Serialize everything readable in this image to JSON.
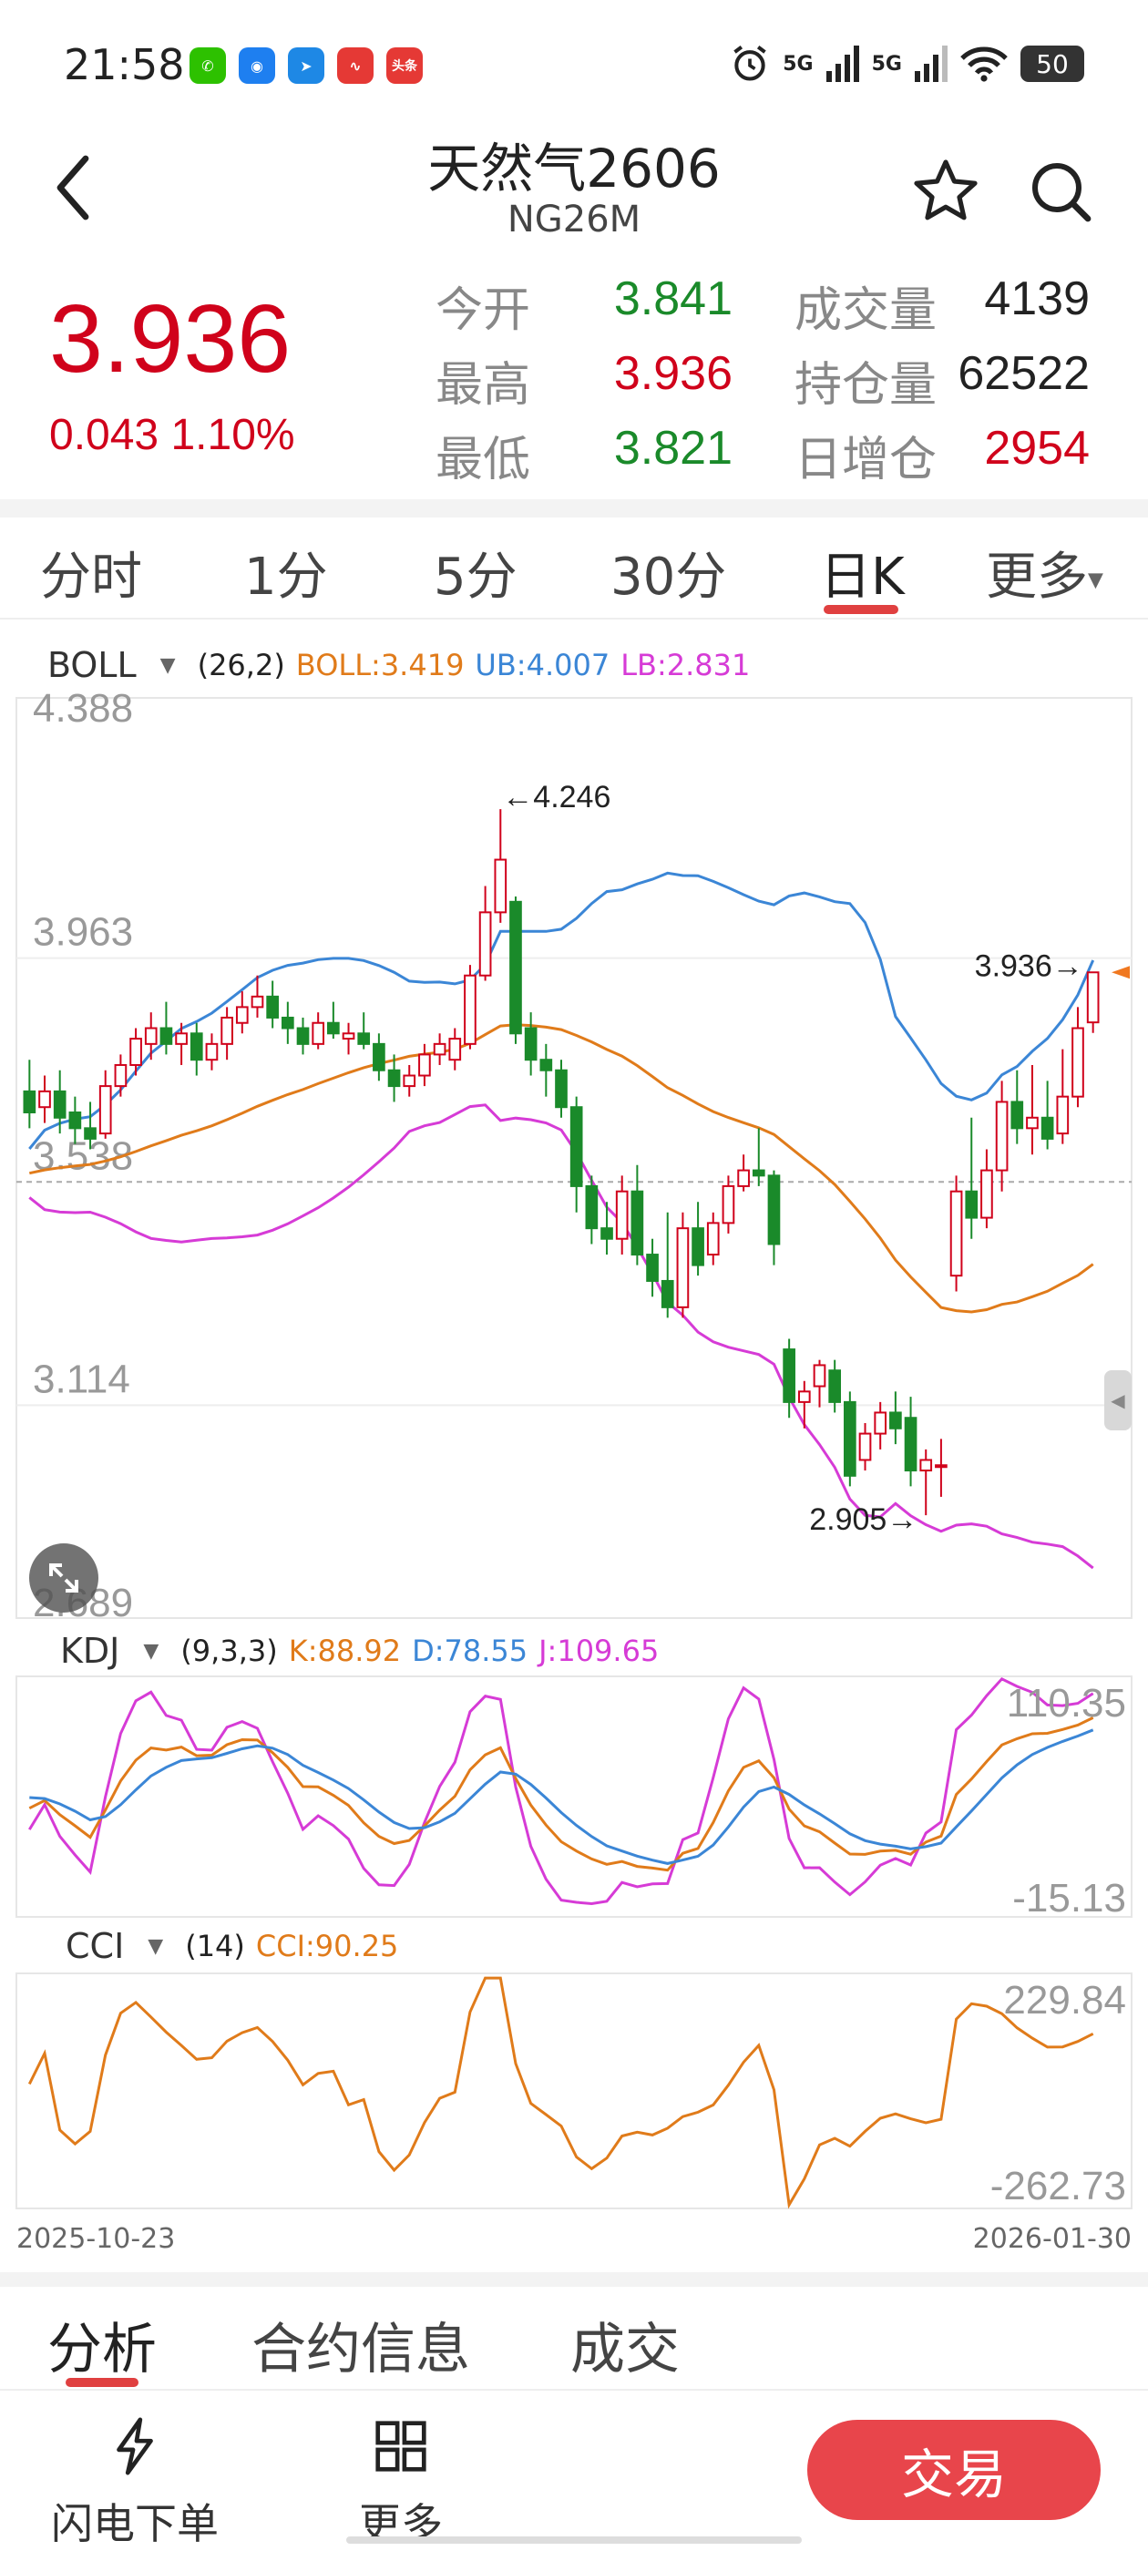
{
  "status_bar": {
    "time": "21:58",
    "app_icons": [
      {
        "name": "wechat-icon",
        "color": "#2dc100",
        "glyph": "✆"
      },
      {
        "name": "browser-icon",
        "color": "#1e7ff0",
        "glyph": "◉"
      },
      {
        "name": "paper-plane-icon",
        "color": "#1e88e5",
        "glyph": "➤"
      },
      {
        "name": "stock-app-icon",
        "color": "#e53935",
        "glyph": "∿"
      },
      {
        "name": "toutiao-icon",
        "color": "#e53935",
        "glyph": "头条"
      }
    ],
    "signal_1": "5G",
    "signal_2": "5G",
    "battery": "50"
  },
  "header": {
    "title": "天然气2606",
    "subtitle": "NG26M"
  },
  "quote": {
    "last_price": "3.936",
    "change": "0.043",
    "change_pct": "1.10%",
    "stats": [
      {
        "label": "今开",
        "value": "3.841",
        "color": "green"
      },
      {
        "label": "成交量",
        "value": "4139",
        "color": "dark"
      },
      {
        "label": "最高",
        "value": "3.936",
        "color": "red"
      },
      {
        "label": "持仓量",
        "value": "62522",
        "color": "dark"
      },
      {
        "label": "最低",
        "value": "3.821",
        "color": "green"
      },
      {
        "label": "日增仓",
        "value": "2954",
        "color": "red"
      }
    ]
  },
  "period_tabs": {
    "items": [
      "分时",
      "1分",
      "5分",
      "30分",
      "日K",
      "更多"
    ],
    "active": "日K"
  },
  "boll": {
    "name": "BOLL",
    "params": "(26,2)",
    "boll": "BOLL:3.419",
    "ub": "UB:4.007",
    "lb": "LB:2.831",
    "y_ticks": [
      "4.388",
      "3.963",
      "3.538",
      "3.114",
      "2.689"
    ],
    "max_label": "4.246",
    "min_label": "2.905",
    "last_label": "3.936"
  },
  "kdj": {
    "name": "KDJ",
    "params": "(9,3,3)",
    "k": "K:88.92",
    "d": "D:78.55",
    "j": "J:109.65",
    "y_top": "110.35",
    "y_bottom": "-15.13"
  },
  "cci": {
    "name": "CCI",
    "params": "(14)",
    "cci": "CCI:90.25",
    "y_top": "229.84",
    "y_bottom": "-262.73"
  },
  "dates": {
    "start": "2025-10-23",
    "end": "2026-01-30"
  },
  "section_tabs": {
    "items": [
      "分析",
      "合约信息",
      "成交"
    ],
    "active": "分析"
  },
  "bottom_bar": {
    "flash_order": "闪电下单",
    "more": "更多",
    "trade": "交易"
  },
  "colors": {
    "up": "#d0021b",
    "down": "#1a8a2a",
    "boll_mid": "#e07b1a",
    "boll_ub": "#3b86d6",
    "boll_lb": "#d63bd6",
    "accent": "#e8454b"
  },
  "chart_data": {
    "type": "candlestick",
    "x_range": [
      "2025-10-23",
      "2026-01-30"
    ],
    "y_range": [
      2.689,
      4.388
    ],
    "y_ticks": [
      4.388,
      3.963,
      3.538,
      3.114,
      2.689
    ],
    "reference_line": 3.538,
    "annotations": [
      {
        "label": "4.246",
        "type": "max"
      },
      {
        "label": "2.905",
        "type": "min"
      },
      {
        "label": "3.936",
        "type": "last"
      }
    ],
    "candles": [
      {
        "o": 3.71,
        "h": 3.77,
        "l": 3.64,
        "c": 3.67
      },
      {
        "o": 3.68,
        "h": 3.74,
        "l": 3.65,
        "c": 3.71
      },
      {
        "o": 3.71,
        "h": 3.75,
        "l": 3.63,
        "c": 3.66
      },
      {
        "o": 3.67,
        "h": 3.7,
        "l": 3.61,
        "c": 3.64
      },
      {
        "o": 3.64,
        "h": 3.69,
        "l": 3.6,
        "c": 3.62
      },
      {
        "o": 3.63,
        "h": 3.75,
        "l": 3.62,
        "c": 3.72
      },
      {
        "o": 3.72,
        "h": 3.78,
        "l": 3.7,
        "c": 3.76
      },
      {
        "o": 3.76,
        "h": 3.83,
        "l": 3.74,
        "c": 3.81
      },
      {
        "o": 3.8,
        "h": 3.86,
        "l": 3.77,
        "c": 3.83
      },
      {
        "o": 3.83,
        "h": 3.88,
        "l": 3.78,
        "c": 3.8
      },
      {
        "o": 3.8,
        "h": 3.84,
        "l": 3.76,
        "c": 3.82
      },
      {
        "o": 3.82,
        "h": 3.84,
        "l": 3.74,
        "c": 3.77
      },
      {
        "o": 3.77,
        "h": 3.82,
        "l": 3.75,
        "c": 3.8
      },
      {
        "o": 3.8,
        "h": 3.87,
        "l": 3.77,
        "c": 3.85
      },
      {
        "o": 3.84,
        "h": 3.9,
        "l": 3.82,
        "c": 3.87
      },
      {
        "o": 3.87,
        "h": 3.93,
        "l": 3.85,
        "c": 3.89
      },
      {
        "o": 3.89,
        "h": 3.92,
        "l": 3.83,
        "c": 3.85
      },
      {
        "o": 3.85,
        "h": 3.88,
        "l": 3.8,
        "c": 3.83
      },
      {
        "o": 3.83,
        "h": 3.85,
        "l": 3.78,
        "c": 3.8
      },
      {
        "o": 3.8,
        "h": 3.86,
        "l": 3.79,
        "c": 3.84
      },
      {
        "o": 3.84,
        "h": 3.88,
        "l": 3.81,
        "c": 3.82
      },
      {
        "o": 3.81,
        "h": 3.84,
        "l": 3.78,
        "c": 3.82
      },
      {
        "o": 3.82,
        "h": 3.86,
        "l": 3.79,
        "c": 3.8
      },
      {
        "o": 3.8,
        "h": 3.82,
        "l": 3.73,
        "c": 3.75
      },
      {
        "o": 3.75,
        "h": 3.78,
        "l": 3.69,
        "c": 3.72
      },
      {
        "o": 3.72,
        "h": 3.76,
        "l": 3.7,
        "c": 3.74
      },
      {
        "o": 3.74,
        "h": 3.8,
        "l": 3.72,
        "c": 3.78
      },
      {
        "o": 3.78,
        "h": 3.82,
        "l": 3.76,
        "c": 3.8
      },
      {
        "o": 3.77,
        "h": 3.83,
        "l": 3.75,
        "c": 3.81
      },
      {
        "o": 3.8,
        "h": 3.95,
        "l": 3.79,
        "c": 3.93
      },
      {
        "o": 3.93,
        "h": 4.1,
        "l": 3.92,
        "c": 4.05
      },
      {
        "o": 4.05,
        "h": 4.246,
        "l": 4.03,
        "c": 4.15
      },
      {
        "o": 4.07,
        "h": 4.08,
        "l": 3.8,
        "c": 3.82
      },
      {
        "o": 3.83,
        "h": 3.86,
        "l": 3.74,
        "c": 3.77
      },
      {
        "o": 3.77,
        "h": 3.8,
        "l": 3.7,
        "c": 3.75
      },
      {
        "o": 3.75,
        "h": 3.77,
        "l": 3.66,
        "c": 3.68
      },
      {
        "o": 3.68,
        "h": 3.7,
        "l": 3.48,
        "c": 3.53
      },
      {
        "o": 3.53,
        "h": 3.55,
        "l": 3.42,
        "c": 3.45
      },
      {
        "o": 3.45,
        "h": 3.5,
        "l": 3.4,
        "c": 3.43
      },
      {
        "o": 3.43,
        "h": 3.55,
        "l": 3.4,
        "c": 3.52
      },
      {
        "o": 3.52,
        "h": 3.57,
        "l": 3.38,
        "c": 3.4
      },
      {
        "o": 3.4,
        "h": 3.43,
        "l": 3.32,
        "c": 3.35
      },
      {
        "o": 3.35,
        "h": 3.48,
        "l": 3.28,
        "c": 3.3
      },
      {
        "o": 3.3,
        "h": 3.48,
        "l": 3.28,
        "c": 3.45
      },
      {
        "o": 3.45,
        "h": 3.5,
        "l": 3.36,
        "c": 3.38
      },
      {
        "o": 3.4,
        "h": 3.48,
        "l": 3.38,
        "c": 3.46
      },
      {
        "o": 3.46,
        "h": 3.55,
        "l": 3.44,
        "c": 3.53
      },
      {
        "o": 3.53,
        "h": 3.59,
        "l": 3.52,
        "c": 3.56
      },
      {
        "o": 3.56,
        "h": 3.64,
        "l": 3.53,
        "c": 3.55
      },
      {
        "o": 3.55,
        "h": 3.56,
        "l": 3.38,
        "c": 3.42
      },
      {
        "o": 3.22,
        "h": 3.24,
        "l": 3.09,
        "c": 3.12
      },
      {
        "o": 3.12,
        "h": 3.16,
        "l": 3.07,
        "c": 3.14
      },
      {
        "o": 3.15,
        "h": 3.2,
        "l": 3.11,
        "c": 3.19
      },
      {
        "o": 3.18,
        "h": 3.2,
        "l": 3.1,
        "c": 3.12
      },
      {
        "o": 3.12,
        "h": 3.14,
        "l": 2.96,
        "c": 2.98
      },
      {
        "o": 3.01,
        "h": 3.08,
        "l": 2.99,
        "c": 3.06
      },
      {
        "o": 3.06,
        "h": 3.12,
        "l": 3.03,
        "c": 3.1
      },
      {
        "o": 3.1,
        "h": 3.14,
        "l": 3.04,
        "c": 3.07
      },
      {
        "o": 3.09,
        "h": 3.13,
        "l": 2.96,
        "c": 2.99
      },
      {
        "o": 2.99,
        "h": 3.03,
        "l": 2.905,
        "c": 3.01
      },
      {
        "o": 3.0,
        "h": 3.05,
        "l": 2.94,
        "c": 3.0
      },
      {
        "o": 3.36,
        "h": 3.55,
        "l": 3.33,
        "c": 3.52
      },
      {
        "o": 3.52,
        "h": 3.66,
        "l": 3.43,
        "c": 3.47
      },
      {
        "o": 3.47,
        "h": 3.6,
        "l": 3.45,
        "c": 3.56
      },
      {
        "o": 3.56,
        "h": 3.73,
        "l": 3.52,
        "c": 3.69
      },
      {
        "o": 3.69,
        "h": 3.75,
        "l": 3.61,
        "c": 3.64
      },
      {
        "o": 3.64,
        "h": 3.76,
        "l": 3.59,
        "c": 3.66
      },
      {
        "o": 3.66,
        "h": 3.73,
        "l": 3.6,
        "c": 3.62
      },
      {
        "o": 3.63,
        "h": 3.79,
        "l": 3.61,
        "c": 3.7
      },
      {
        "o": 3.7,
        "h": 3.87,
        "l": 3.68,
        "c": 3.83
      },
      {
        "o": 3.841,
        "h": 3.936,
        "l": 3.821,
        "c": 3.936
      }
    ]
  }
}
